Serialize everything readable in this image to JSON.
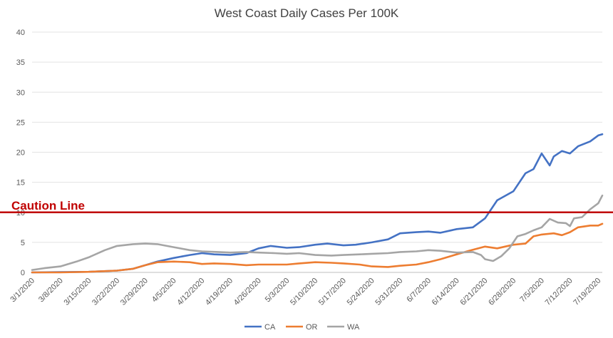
{
  "chart_data": {
    "type": "line",
    "title": "West Coast Daily Cases Per 100K",
    "xlabel": "",
    "ylabel": "",
    "ylim": [
      0,
      40
    ],
    "yticks": [
      0,
      5,
      10,
      15,
      20,
      25,
      30,
      35,
      40
    ],
    "x_start": "3/1/2020",
    "x_end": "7/20/2020",
    "xtick_labels": [
      "3/1/2020",
      "3/8/2020",
      "3/15/2020",
      "3/22/2020",
      "3/29/2020",
      "4/5/2020",
      "4/12/2020",
      "4/19/2020",
      "4/26/2020",
      "5/3/2020",
      "5/10/2020",
      "5/17/2020",
      "5/24/2020",
      "5/31/2020",
      "6/7/2020",
      "6/14/2020",
      "6/21/2020",
      "6/28/2020",
      "7/5/2020",
      "7/12/2020",
      "7/19/2020"
    ],
    "grid": true,
    "legend_position": "bottom",
    "reference_line": {
      "label": "Caution Line",
      "value": 10,
      "color": "#c00000"
    },
    "series": [
      {
        "name": "CA",
        "color": "#4472c4",
        "points": [
          [
            "3/1/2020",
            0
          ],
          [
            "3/8/2020",
            0.05
          ],
          [
            "3/15/2020",
            0.1
          ],
          [
            "3/22/2020",
            0.3
          ],
          [
            "3/26/2020",
            0.6
          ],
          [
            "3/29/2020",
            1.2
          ],
          [
            "4/1/2020",
            1.8
          ],
          [
            "4/5/2020",
            2.4
          ],
          [
            "4/9/2020",
            2.9
          ],
          [
            "4/12/2020",
            3.2
          ],
          [
            "4/15/2020",
            3.0
          ],
          [
            "4/19/2020",
            2.9
          ],
          [
            "4/23/2020",
            3.2
          ],
          [
            "4/26/2020",
            4.0
          ],
          [
            "4/29/2020",
            4.4
          ],
          [
            "5/3/2020",
            4.1
          ],
          [
            "5/6/2020",
            4.2
          ],
          [
            "5/10/2020",
            4.6
          ],
          [
            "5/13/2020",
            4.8
          ],
          [
            "5/17/2020",
            4.5
          ],
          [
            "5/20/2020",
            4.6
          ],
          [
            "5/24/2020",
            5.0
          ],
          [
            "5/28/2020",
            5.5
          ],
          [
            "5/31/2020",
            6.5
          ],
          [
            "6/4/2020",
            6.7
          ],
          [
            "6/7/2020",
            6.8
          ],
          [
            "6/10/2020",
            6.6
          ],
          [
            "6/14/2020",
            7.2
          ],
          [
            "6/18/2020",
            7.5
          ],
          [
            "6/21/2020",
            9.0
          ],
          [
            "6/24/2020",
            12.0
          ],
          [
            "6/28/2020",
            13.5
          ],
          [
            "7/1/2020",
            16.5
          ],
          [
            "7/3/2020",
            17.2
          ],
          [
            "7/5/2020",
            19.8
          ],
          [
            "7/7/2020",
            17.8
          ],
          [
            "7/8/2020",
            19.3
          ],
          [
            "7/10/2020",
            20.2
          ],
          [
            "7/12/2020",
            19.8
          ],
          [
            "7/14/2020",
            21.0
          ],
          [
            "7/17/2020",
            21.8
          ],
          [
            "7/19/2020",
            22.8
          ],
          [
            "7/20/2020",
            23.0
          ]
        ]
      },
      {
        "name": "OR",
        "color": "#ed7d31",
        "points": [
          [
            "3/1/2020",
            0
          ],
          [
            "3/8/2020",
            0
          ],
          [
            "3/15/2020",
            0.1
          ],
          [
            "3/22/2020",
            0.3
          ],
          [
            "3/26/2020",
            0.6
          ],
          [
            "3/29/2020",
            1.2
          ],
          [
            "4/1/2020",
            1.7
          ],
          [
            "4/5/2020",
            1.8
          ],
          [
            "4/9/2020",
            1.7
          ],
          [
            "4/12/2020",
            1.4
          ],
          [
            "4/15/2020",
            1.5
          ],
          [
            "4/19/2020",
            1.4
          ],
          [
            "4/23/2020",
            1.2
          ],
          [
            "4/26/2020",
            1.3
          ],
          [
            "5/3/2020",
            1.3
          ],
          [
            "5/6/2020",
            1.5
          ],
          [
            "5/10/2020",
            1.7
          ],
          [
            "5/14/2020",
            1.6
          ],
          [
            "5/17/2020",
            1.5
          ],
          [
            "5/21/2020",
            1.3
          ],
          [
            "5/24/2020",
            1.0
          ],
          [
            "5/28/2020",
            0.9
          ],
          [
            "5/31/2020",
            1.1
          ],
          [
            "6/4/2020",
            1.3
          ],
          [
            "6/7/2020",
            1.7
          ],
          [
            "6/10/2020",
            2.2
          ],
          [
            "6/14/2020",
            3.0
          ],
          [
            "6/17/2020",
            3.6
          ],
          [
            "6/21/2020",
            4.3
          ],
          [
            "6/24/2020",
            4.0
          ],
          [
            "6/28/2020",
            4.6
          ],
          [
            "7/1/2020",
            4.8
          ],
          [
            "7/3/2020",
            6.0
          ],
          [
            "7/5/2020",
            6.3
          ],
          [
            "7/8/2020",
            6.5
          ],
          [
            "7/10/2020",
            6.2
          ],
          [
            "7/12/2020",
            6.7
          ],
          [
            "7/14/2020",
            7.5
          ],
          [
            "7/17/2020",
            7.8
          ],
          [
            "7/19/2020",
            7.8
          ],
          [
            "7/20/2020",
            8.1
          ]
        ]
      },
      {
        "name": "WA",
        "color": "#a5a5a5",
        "points": [
          [
            "3/1/2020",
            0.4
          ],
          [
            "3/4/2020",
            0.7
          ],
          [
            "3/8/2020",
            1.0
          ],
          [
            "3/12/2020",
            1.8
          ],
          [
            "3/15/2020",
            2.5
          ],
          [
            "3/19/2020",
            3.7
          ],
          [
            "3/22/2020",
            4.4
          ],
          [
            "3/26/2020",
            4.7
          ],
          [
            "3/29/2020",
            4.8
          ],
          [
            "4/1/2020",
            4.7
          ],
          [
            "4/5/2020",
            4.2
          ],
          [
            "4/9/2020",
            3.7
          ],
          [
            "4/12/2020",
            3.5
          ],
          [
            "4/16/2020",
            3.4
          ],
          [
            "4/19/2020",
            3.3
          ],
          [
            "4/23/2020",
            3.4
          ],
          [
            "4/26/2020",
            3.3
          ],
          [
            "4/30/2020",
            3.2
          ],
          [
            "5/3/2020",
            3.1
          ],
          [
            "5/6/2020",
            3.2
          ],
          [
            "5/10/2020",
            2.9
          ],
          [
            "5/14/2020",
            2.8
          ],
          [
            "5/17/2020",
            2.9
          ],
          [
            "5/21/2020",
            3.0
          ],
          [
            "5/24/2020",
            3.1
          ],
          [
            "5/28/2020",
            3.2
          ],
          [
            "5/31/2020",
            3.4
          ],
          [
            "6/4/2020",
            3.5
          ],
          [
            "6/7/2020",
            3.7
          ],
          [
            "6/10/2020",
            3.6
          ],
          [
            "6/14/2020",
            3.3
          ],
          [
            "6/18/2020",
            3.4
          ],
          [
            "6/20/2020",
            2.9
          ],
          [
            "6/21/2020",
            2.2
          ],
          [
            "6/23/2020",
            1.9
          ],
          [
            "6/25/2020",
            2.7
          ],
          [
            "6/27/2020",
            4.0
          ],
          [
            "6/29/2020",
            6.0
          ],
          [
            "7/1/2020",
            6.4
          ],
          [
            "7/3/2020",
            7.0
          ],
          [
            "7/5/2020",
            7.5
          ],
          [
            "7/7/2020",
            8.9
          ],
          [
            "7/9/2020",
            8.3
          ],
          [
            "7/11/2020",
            8.2
          ],
          [
            "7/12/2020",
            7.7
          ],
          [
            "7/13/2020",
            9.0
          ],
          [
            "7/15/2020",
            9.2
          ],
          [
            "7/17/2020",
            10.5
          ],
          [
            "7/19/2020",
            11.5
          ],
          [
            "7/20/2020",
            12.8
          ]
        ]
      }
    ]
  }
}
